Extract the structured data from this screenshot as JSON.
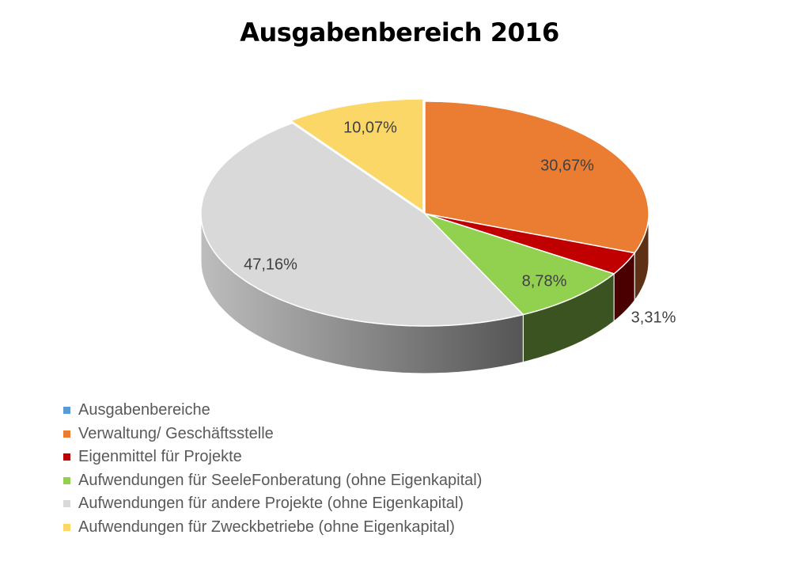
{
  "chart_data": {
    "type": "pie",
    "style": "3d",
    "title": "Ausgabenbereich 2016",
    "legend_position": "bottom-left",
    "series": [
      {
        "name": "Ausgabenbereiche",
        "value": 0,
        "label": "",
        "color": "#5b9bd5",
        "side_color": "#2e5f8a"
      },
      {
        "name": "Verwaltung/ Geschäftsstelle",
        "value": 30.67,
        "label": "30,67%",
        "color": "#ea7d32",
        "side_color": "#5e3117"
      },
      {
        "name": "Eigenmittel für Projekte",
        "value": 3.31,
        "label": "3,31%",
        "color": "#c00000",
        "side_color": "#4a0000"
      },
      {
        "name": "Aufwendungen für SeeleFonberatung (ohne Eigenkapital)",
        "value": 8.78,
        "label": "8,78%",
        "color": "#92d050",
        "side_color": "#3b5320"
      },
      {
        "name": "Aufwendungen für andere Projekte (ohne Eigenkapital)",
        "value": 47.16,
        "label": "47,16%",
        "color": "#d9d9d9",
        "side_color": "#8c8c8c"
      },
      {
        "name": "Aufwendungen für Zweckbetriebe (ohne Eigenkapital)",
        "value": 10.07,
        "label": "10,07%",
        "color": "#fad766",
        "side_color": "#a08a3e"
      }
    ]
  }
}
